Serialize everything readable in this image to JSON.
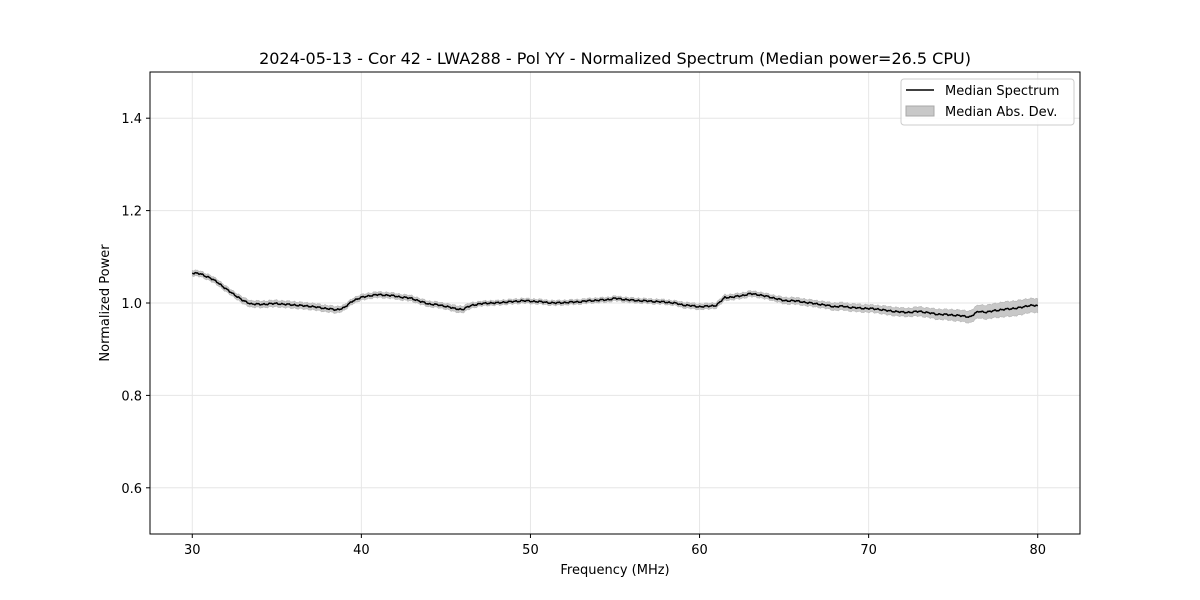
{
  "chart_data": {
    "type": "line",
    "title": "2024-05-13 - Cor 42 - LWA288 - Pol YY - Normalized Spectrum (Median power=26.5 CPU)",
    "xlabel": "Frequency (MHz)",
    "ylabel": "Normalized Power",
    "xlim": [
      27.5,
      82.5
    ],
    "ylim": [
      0.5,
      1.5
    ],
    "xticks": [
      30,
      40,
      50,
      60,
      70,
      80
    ],
    "xtick_labels": [
      "30",
      "40",
      "50",
      "60",
      "70",
      "80"
    ],
    "yticks": [
      0.6,
      0.8,
      1.0,
      1.2,
      1.4
    ],
    "ytick_labels": [
      "0.6",
      "0.8",
      "1.0",
      "1.2",
      "1.4"
    ],
    "grid": true,
    "legend_position": "top-right",
    "legend": [
      "Median Spectrum",
      "Median Abs. Dev."
    ],
    "series": [
      {
        "name": "Median Spectrum",
        "kind": "line",
        "color": "#000000",
        "x": [
          30,
          30.5,
          31,
          31.5,
          32,
          32.5,
          33,
          33.5,
          34,
          34.5,
          35,
          35.5,
          36,
          36.5,
          37,
          37.5,
          38,
          38.5,
          39,
          39.5,
          40,
          40.5,
          41,
          41.5,
          42,
          42.5,
          43,
          43.5,
          44,
          44.5,
          45,
          45.5,
          46,
          46.5,
          47,
          47.5,
          48,
          48.5,
          49,
          49.5,
          50,
          50.5,
          51,
          51.5,
          52,
          52.5,
          53,
          53.5,
          54,
          54.5,
          55,
          55.5,
          56,
          56.5,
          57,
          57.5,
          58,
          58.5,
          59,
          59.5,
          60,
          60.5,
          61,
          61.5,
          62,
          62.5,
          63,
          63.5,
          64,
          64.5,
          65,
          65.5,
          66,
          66.5,
          67,
          67.5,
          68,
          68.5,
          69,
          69.5,
          70,
          70.5,
          71,
          71.5,
          72,
          72.5,
          73,
          73.5,
          74,
          74.5,
          75,
          75.5,
          76,
          76.5,
          77,
          77.5,
          78,
          78.5,
          79,
          79.5,
          80
        ],
        "y": [
          1.065,
          1.063,
          1.055,
          1.045,
          1.03,
          1.018,
          1.005,
          0.998,
          0.997,
          0.998,
          0.999,
          0.997,
          0.996,
          0.994,
          0.993,
          0.99,
          0.988,
          0.985,
          0.99,
          1.005,
          1.012,
          1.016,
          1.018,
          1.017,
          1.015,
          1.012,
          1.01,
          1.003,
          0.998,
          0.996,
          0.993,
          0.988,
          0.986,
          0.995,
          0.998,
          1.0,
          1.0,
          1.002,
          1.003,
          1.005,
          1.004,
          1.003,
          1.001,
          1.0,
          1.001,
          1.002,
          1.003,
          1.005,
          1.006,
          1.007,
          1.01,
          1.008,
          1.006,
          1.005,
          1.004,
          1.003,
          1.002,
          1.0,
          0.996,
          0.994,
          0.992,
          0.993,
          0.995,
          1.012,
          1.013,
          1.016,
          1.02,
          1.018,
          1.014,
          1.01,
          1.005,
          1.005,
          1.003,
          1.0,
          0.998,
          0.995,
          0.992,
          0.993,
          0.99,
          0.989,
          0.988,
          0.987,
          0.984,
          0.982,
          0.98,
          0.98,
          0.982,
          0.979,
          0.976,
          0.975,
          0.974,
          0.972,
          0.97,
          0.982,
          0.98,
          0.984,
          0.986,
          0.988,
          0.99,
          0.995,
          0.994
        ]
      },
      {
        "name": "Median Abs. Dev.",
        "kind": "band",
        "color": "#c8c8c8",
        "half_width": [
          0.006,
          0.006,
          0.006,
          0.006,
          0.006,
          0.006,
          0.007,
          0.007,
          0.007,
          0.007,
          0.007,
          0.007,
          0.007,
          0.007,
          0.007,
          0.007,
          0.007,
          0.007,
          0.006,
          0.006,
          0.006,
          0.006,
          0.006,
          0.006,
          0.006,
          0.006,
          0.006,
          0.006,
          0.006,
          0.006,
          0.006,
          0.007,
          0.007,
          0.006,
          0.005,
          0.005,
          0.005,
          0.005,
          0.005,
          0.005,
          0.005,
          0.005,
          0.005,
          0.005,
          0.005,
          0.005,
          0.005,
          0.005,
          0.005,
          0.005,
          0.005,
          0.005,
          0.005,
          0.005,
          0.005,
          0.005,
          0.005,
          0.005,
          0.006,
          0.006,
          0.006,
          0.006,
          0.006,
          0.006,
          0.006,
          0.006,
          0.006,
          0.006,
          0.006,
          0.006,
          0.007,
          0.007,
          0.007,
          0.007,
          0.007,
          0.007,
          0.008,
          0.008,
          0.008,
          0.008,
          0.008,
          0.008,
          0.009,
          0.009,
          0.009,
          0.009,
          0.01,
          0.01,
          0.011,
          0.011,
          0.012,
          0.012,
          0.013,
          0.014,
          0.015,
          0.015,
          0.016,
          0.016,
          0.016,
          0.015,
          0.015
        ]
      }
    ]
  }
}
